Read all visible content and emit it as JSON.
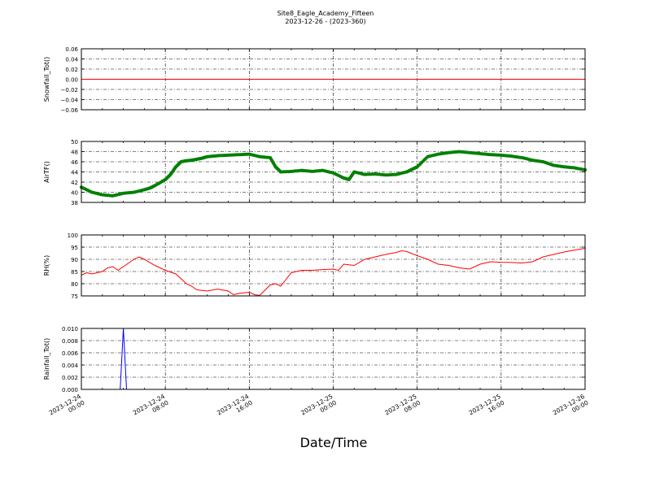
{
  "figure": {
    "title": "Site8_Eagle_Academy_Fifteen",
    "subtitle": "2023-12-26 - (2023-360)",
    "xlabel": "Date/Time",
    "x_tick_labels": [
      [
        "2023-12-24",
        "00:00"
      ],
      [
        "2023-12-24",
        "08:00"
      ],
      [
        "2023-12-24",
        "16:00"
      ],
      [
        "2023-12-25",
        "00:00"
      ],
      [
        "2023-12-25",
        "08:00"
      ],
      [
        "2023-12-25",
        "16:00"
      ],
      [
        "2023-12-26",
        "00:00"
      ]
    ],
    "colors": {
      "snowfall": "#ff0000",
      "airtf": "#008000",
      "rh": "#ff0000",
      "rainfall": "#0000ff",
      "axis": "#000000"
    }
  },
  "chart_data": [
    {
      "type": "line",
      "ylabel": "Snowfall_Tot()",
      "ylim": [
        -0.06,
        0.06
      ],
      "yticks": [
        -0.06,
        -0.04,
        -0.02,
        0.0,
        0.02,
        0.04,
        0.06
      ],
      "ytick_labels": [
        "−0.06",
        "−0.04",
        "−0.02",
        "0.00",
        "0.02",
        "0.04",
        "0.06"
      ],
      "grid": true,
      "x_hours": [
        0,
        48
      ],
      "y": [
        0,
        0
      ],
      "color": "#ff0000"
    },
    {
      "type": "line",
      "marker": "circle",
      "ylabel": "AirTF()",
      "ylim": [
        38,
        50
      ],
      "yticks": [
        38,
        40,
        42,
        44,
        46,
        48,
        50
      ],
      "ytick_labels": [
        "38",
        "40",
        "42",
        "44",
        "46",
        "48",
        "50"
      ],
      "grid": true,
      "x_hours": [
        0,
        1,
        2,
        3,
        4,
        5,
        6,
        6.5,
        7,
        8,
        8.5,
        9,
        9.5,
        10,
        10.5,
        11,
        11.5,
        12,
        13,
        14,
        15,
        16,
        17,
        18,
        18.5,
        19,
        20,
        21,
        22,
        23,
        24,
        25,
        25.5,
        26,
        27,
        28,
        29,
        30,
        31,
        31.5,
        32,
        33,
        34,
        35,
        36,
        37,
        38,
        39,
        40,
        41,
        42,
        43,
        44,
        45,
        46,
        47,
        48
      ],
      "y": [
        41.0,
        40.0,
        39.5,
        39.3,
        39.8,
        40.0,
        40.5,
        40.8,
        41.3,
        42.5,
        43.5,
        45.0,
        46.0,
        46.2,
        46.3,
        46.5,
        46.7,
        47.0,
        47.2,
        47.3,
        47.4,
        47.5,
        47.0,
        46.8,
        45.0,
        44.0,
        44.1,
        44.3,
        44.1,
        44.3,
        43.8,
        42.8,
        42.5,
        44.0,
        43.5,
        43.6,
        43.4,
        43.5,
        44.0,
        44.5,
        45.0,
        47.0,
        47.5,
        47.8,
        48.0,
        47.8,
        47.6,
        47.4,
        47.3,
        47.1,
        46.8,
        46.3,
        46.0,
        45.3,
        45.0,
        44.8,
        44.4
      ],
      "color": "#008000"
    },
    {
      "type": "line",
      "ylabel": "RH(%)",
      "ylim": [
        75,
        100
      ],
      "yticks": [
        75,
        80,
        85,
        90,
        95,
        100
      ],
      "ytick_labels": [
        "75",
        "80",
        "85",
        "90",
        "95",
        "100"
      ],
      "grid": true,
      "x_hours": [
        0,
        0.5,
        1,
        2,
        2.5,
        3,
        3.5,
        4,
        5,
        5.5,
        6,
        7,
        8,
        9,
        10,
        10.5,
        11,
        12,
        13,
        14,
        14.5,
        15,
        16,
        16.5,
        17,
        18,
        18.5,
        19,
        20,
        21,
        22,
        23,
        24,
        24.5,
        25,
        26,
        27,
        28,
        29,
        30,
        30.5,
        31,
        32,
        33,
        34,
        35,
        36,
        37,
        38,
        39,
        40,
        41,
        42,
        43,
        44,
        45,
        46,
        47,
        48
      ],
      "y": [
        83.5,
        84.5,
        84.0,
        85.0,
        86.5,
        87.0,
        85.5,
        87.0,
        90.0,
        91.0,
        90.0,
        87.5,
        85.5,
        84.0,
        80.0,
        79.0,
        77.5,
        77.0,
        77.8,
        77.0,
        75.5,
        76.0,
        76.5,
        75.5,
        75.2,
        79.5,
        80.0,
        79.0,
        84.5,
        85.5,
        85.5,
        85.8,
        86.0,
        85.5,
        88.0,
        87.5,
        90.0,
        91.0,
        92.0,
        92.8,
        93.5,
        93.2,
        91.5,
        90.0,
        88.0,
        87.5,
        86.5,
        86.0,
        88.0,
        89.0,
        88.8,
        88.7,
        88.5,
        89.0,
        91.0,
        92.0,
        93.0,
        93.8,
        94.5
      ],
      "color": "#ff0000"
    },
    {
      "type": "line",
      "ylabel": "Rainfall_Tot()",
      "ylim": [
        0.0,
        0.01
      ],
      "yticks": [
        0.0,
        0.002,
        0.004,
        0.006,
        0.008,
        0.01
      ],
      "ytick_labels": [
        "0.000",
        "0.002",
        "0.004",
        "0.006",
        "0.008",
        "0.010"
      ],
      "grid": true,
      "x_hours": [
        0,
        3.7,
        4.0,
        4.3,
        48
      ],
      "y": [
        0,
        0,
        0.01,
        0,
        0
      ],
      "color": "#0000ff"
    }
  ]
}
